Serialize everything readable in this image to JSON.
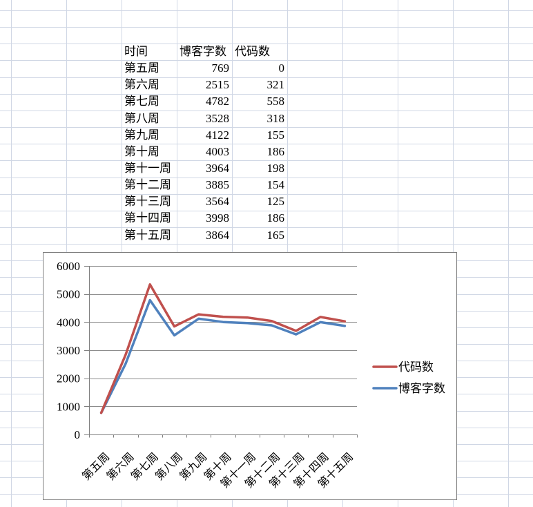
{
  "table": {
    "headers": [
      "时间",
      "博客字数",
      "代码数"
    ],
    "rows": [
      [
        "第五周",
        "769",
        "0"
      ],
      [
        "第六周",
        "2515",
        "321"
      ],
      [
        "第七周",
        "4782",
        "558"
      ],
      [
        "第八周",
        "3528",
        "318"
      ],
      [
        "第九周",
        "4122",
        "155"
      ],
      [
        "第十周",
        "4003",
        "186"
      ],
      [
        "第十一周",
        "3964",
        "198"
      ],
      [
        "第十二周",
        "3885",
        "154"
      ],
      [
        "第十三周",
        "3564",
        "125"
      ],
      [
        "第十四周",
        "3998",
        "186"
      ],
      [
        "第十五周",
        "3864",
        "165"
      ]
    ]
  },
  "chart_data": {
    "type": "line",
    "stacked": true,
    "title": "",
    "xlabel": "",
    "ylabel": "",
    "categories": [
      "第五周",
      "第六周",
      "第七周",
      "第八周",
      "第九周",
      "第十周",
      "第十一周",
      "第十二周",
      "第十三周",
      "第十四周",
      "第十五周"
    ],
    "series": [
      {
        "name": "博客字数",
        "color": "#4F81BD",
        "values": [
          769,
          2515,
          4782,
          3528,
          4122,
          4003,
          3964,
          3885,
          3564,
          3998,
          3864
        ]
      },
      {
        "name": "代码数",
        "color": "#C0504D",
        "values": [
          0,
          321,
          558,
          318,
          155,
          186,
          198,
          154,
          125,
          186,
          165
        ]
      }
    ],
    "ylim": [
      0,
      6000
    ],
    "ytick_step": 1000,
    "yticklabels": [
      "0",
      "1000",
      "2000",
      "3000",
      "4000",
      "5000",
      "6000"
    ],
    "grid": true,
    "legend_position": "right",
    "legend": [
      {
        "label": "代码数",
        "color": "#C0504D"
      },
      {
        "label": "博客字数",
        "color": "#4F81BD"
      }
    ],
    "colors": {
      "axis": "#7F7F7F",
      "gridline": "#8C8C8C",
      "chart_border": "#7F7F7F",
      "sheet_gridline": "#D0D7E5"
    }
  }
}
